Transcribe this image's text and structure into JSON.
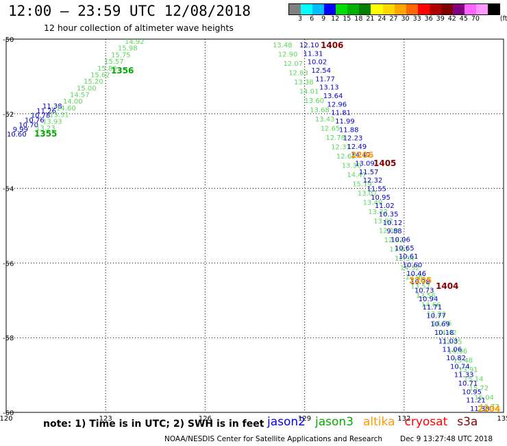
{
  "header": {
    "title": "12:00 – 23:59 UTC 12/08/2018",
    "subtitle": "12 hour collection of altimeter wave heights"
  },
  "scale": {
    "unit": "(ft)",
    "colors": [
      "#808080",
      "#00ffff",
      "#00bfff",
      "#0000ff",
      "#00dd00",
      "#00b000",
      "#008000",
      "#ffff00",
      "#ffd700",
      "#ffa500",
      "#ff6600",
      "#ff0000",
      "#b00000",
      "#800000",
      "#800080",
      "#ff66ff",
      "#ff99ff",
      "#000000"
    ],
    "labels": [
      "3",
      "6",
      "9",
      "12",
      "15",
      "18",
      "21",
      "24",
      "27",
      "30",
      "33",
      "36",
      "39",
      "42",
      "45",
      "70"
    ]
  },
  "axes": {
    "lon_ticks": [
      "120",
      "123",
      "126",
      "129",
      "132",
      "135"
    ],
    "lat_ticks": [
      "-50",
      "-52",
      "-54",
      "-56",
      "-58",
      "-60"
    ]
  },
  "tracks": [
    {
      "sat": "jason2 (segment 1)",
      "color": "#0000cc",
      "values": [
        "10.60",
        "9.99",
        "10.70",
        "10.76",
        "10.78",
        "11.26",
        "11.38"
      ]
    },
    {
      "sat": "jason3 (segment 1)",
      "color": "#58d858",
      "values": [
        "13.23",
        "13.93",
        "13.31",
        "14.60",
        "14.00",
        "14.57",
        "15.00",
        "15.20",
        "15.62",
        "15.80",
        "15.57",
        "15.75",
        "15.98",
        "14.92"
      ]
    },
    {
      "sat": "jason3 (segment 2)",
      "color": "#58d858",
      "values": [
        "13.48",
        "12.90",
        "12.07",
        "12.83",
        "13.38",
        "14.01",
        "13.60",
        "13.68",
        "13.43",
        "12.65",
        "12.78",
        "12.31",
        "12.65",
        "13.30",
        "14.47",
        "15.19",
        "13.07",
        "13.49",
        "13.22",
        "13.92",
        "12.19",
        "12.82",
        "13.81",
        "12.34",
        "14.32",
        "12.90",
        "13.57",
        "13.56",
        "14.66",
        "13.22",
        "14.76",
        "14.42",
        "13.05",
        "14.96",
        "13.48",
        "13.91",
        "15.14",
        "15.72",
        "16.04",
        "13.77"
      ]
    },
    {
      "sat": "jason2 (segment 2)",
      "color": "#0000cc",
      "values": [
        "12.10",
        "11.31",
        "10.02",
        "12.54",
        "11.77",
        "13.13",
        "13.64",
        "12.96",
        "11.81",
        "11.99",
        "11.88",
        "12.23",
        "12.49",
        "14.47",
        "13.09",
        "11.57",
        "12.32",
        "11.55",
        "10.95",
        "11.02",
        "10.35",
        "10.12",
        "9.88",
        "10.06",
        "10.65",
        "10.61",
        "10.60",
        "10.46",
        "10.78",
        "10.73",
        "10.94",
        "11.71",
        "10.77",
        "10.69",
        "10.18",
        "11.03",
        "11.06",
        "10.82",
        "10.74",
        "11.33",
        "10.71",
        "10.95",
        "11.21",
        "11.38"
      ]
    },
    {
      "sat": "times",
      "values": [
        "1406",
        "1356",
        "1355",
        "1405",
        "2206",
        "1404",
        "2205",
        "2204"
      ]
    }
  ],
  "note": "note:  1) Time is in UTC;  2) SWH is in feet",
  "satellites": [
    {
      "name": "jason2",
      "color": "#0000ee"
    },
    {
      "name": "jason3",
      "color": "#00aa00"
    },
    {
      "name": "altika",
      "color": "#ff9900"
    },
    {
      "name": "cryosat",
      "color": "#ff0000"
    },
    {
      "name": "s3a",
      "color": "#880000"
    }
  ],
  "footer": {
    "credit": "NOAA/NESDIS Center for Satellite Applications and Research",
    "timestamp": "Dec  9 13:27:48 UTC 2018"
  }
}
